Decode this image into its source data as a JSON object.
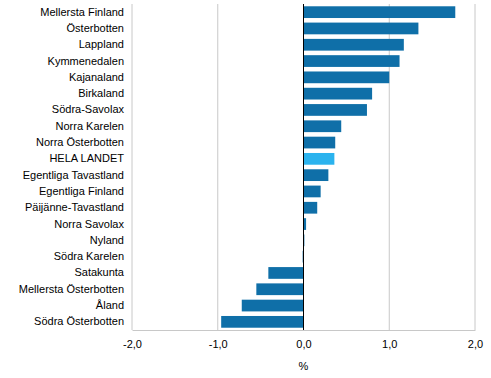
{
  "chart_data": {
    "type": "bar",
    "orientation": "horizontal",
    "x_label": "%",
    "categories": [
      "Mellersta Finland",
      "Österbotten",
      "Lappland",
      "Kymmenedalen",
      "Kajanaland",
      "Birkaland",
      "Södra-Savolax",
      "Norra Karelen",
      "Norra Österbotten",
      "HELA LANDET",
      "Egentliga Tavastland",
      "Egentliga Finland",
      "Päijänne-Tavastland",
      "Norra Savolax",
      "Nyland",
      "Södra Karelen",
      "Satakunta",
      "Mellersta Österbotten",
      "Åland",
      "Södra Österbotten"
    ],
    "values": [
      1.77,
      1.34,
      1.17,
      1.12,
      1.0,
      0.8,
      0.74,
      0.44,
      0.37,
      0.36,
      0.29,
      0.2,
      0.16,
      0.03,
      0.01,
      -0.01,
      -0.41,
      -0.55,
      -0.72,
      -0.96
    ],
    "colors": [
      "#0f6fa8",
      "#0f6fa8",
      "#0f6fa8",
      "#0f6fa8",
      "#0f6fa8",
      "#0f6fa8",
      "#0f6fa8",
      "#0f6fa8",
      "#0f6fa8",
      "#2bb3ee",
      "#0f6fa8",
      "#0f6fa8",
      "#0f6fa8",
      "#0f6fa8",
      "#0f6fa8",
      "#0f6fa8",
      "#0f6fa8",
      "#0f6fa8",
      "#0f6fa8",
      "#0f6fa8"
    ],
    "xlim": [
      -2,
      2
    ],
    "xticks": [
      {
        "value": -2,
        "label": "-2,0"
      },
      {
        "value": -1,
        "label": "-1,0"
      },
      {
        "value": 0,
        "label": "0,0"
      },
      {
        "value": 1,
        "label": "1,0"
      },
      {
        "value": 2,
        "label": "2,0"
      }
    ],
    "grid": true
  }
}
